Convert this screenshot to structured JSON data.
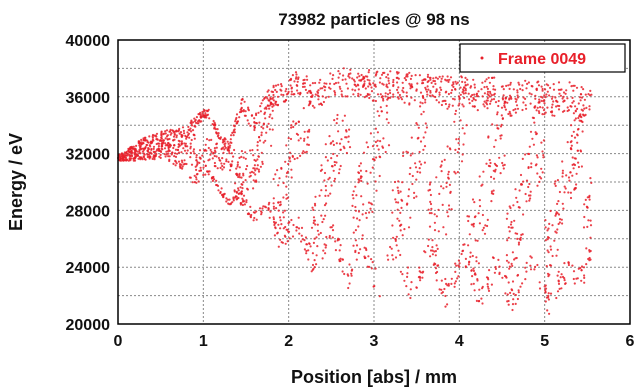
{
  "chart_data": {
    "type": "scatter",
    "title": "73982 particles @ 98 ns",
    "xlabel": "Position [abs]  / mm",
    "ylabel": "Energy / eV",
    "xlim": [
      0,
      6
    ],
    "ylim": [
      20000,
      40000
    ],
    "x_ticks": [
      "0",
      "1",
      "2",
      "3",
      "4",
      "5",
      "6"
    ],
    "y_ticks": [
      "20000",
      "24000",
      "28000",
      "32000",
      "36000",
      "40000"
    ],
    "grid": true,
    "legend_position": "top-right",
    "series": [
      {
        "name": "Frame 0049",
        "color": "#e8202a",
        "envelope": {
          "x": [
            0.0,
            0.3,
            0.55,
            0.75,
            0.9,
            1.05,
            1.2,
            1.3,
            1.45,
            1.6,
            1.75,
            1.9,
            2.1,
            2.3,
            2.5,
            2.7,
            2.85,
            3.05,
            3.25,
            3.45,
            3.65,
            3.85,
            4.05,
            4.25,
            4.45,
            4.6,
            4.85,
            5.05,
            5.25,
            5.45,
            5.55
          ],
          "y_min": [
            31500,
            31500,
            31700,
            30800,
            29800,
            30400,
            29200,
            28200,
            28400,
            26900,
            27900,
            25000,
            26500,
            23200,
            26000,
            22400,
            25000,
            21600,
            24800,
            21200,
            24500,
            21000,
            24200,
            20800,
            23800,
            20700,
            23600,
            20600,
            22900,
            22500,
            24800
          ],
          "y_max": [
            31900,
            33100,
            33700,
            33800,
            34600,
            35300,
            33500,
            32800,
            36000,
            34600,
            36400,
            37200,
            38000,
            37000,
            37800,
            38100,
            37800,
            38000,
            37900,
            37700,
            37800,
            37500,
            37600,
            37300,
            37400,
            37000,
            37200,
            36900,
            37100,
            36800,
            36500
          ]
        }
      }
    ]
  }
}
